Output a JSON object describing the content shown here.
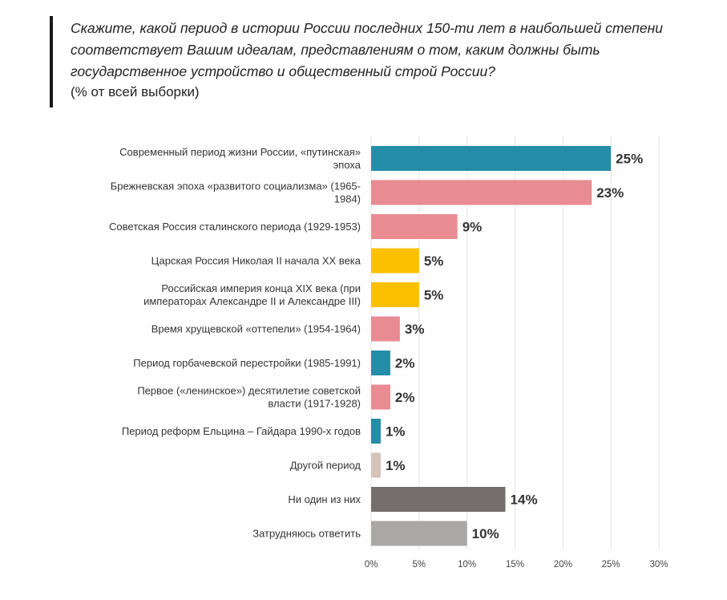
{
  "header": {
    "question": "Скажите, какой период в истории России последних 150-ти лет в наибольшей степени соответствует Вашим идеалам, представлениям о том, каким должны быть государственное устройство и общественный строй России?",
    "note": "(% от всей выборки)"
  },
  "chart_data": {
    "type": "bar",
    "orientation": "horizontal",
    "categories": [
      "Современный период жизни России, «путинская» эпоха",
      "Брежневская эпоха «развитого социализма» (1965-1984)",
      "Советская Россия сталинского периода (1929-1953)",
      "Царская Россия Николая II начала ХХ века",
      "Российская империя конца XIX века (при императорах Александре II и Александре III)",
      "Время хрущевской «оттепели» (1954-1964)",
      "Период горбачевской перестройки (1985-1991)",
      "Первое («ленинское») десятилетие советской власти (1917-1928)",
      "Период реформ Ельцина – Гайдара 1990-х годов",
      "Другой период",
      "Ни один из них",
      "Затрудняюсь ответить"
    ],
    "category_lines": [
      [
        "Современный период жизни России, «путинская»",
        "эпоха"
      ],
      [
        "Брежневская эпоха «развитого социализма» (1965-",
        "1984)"
      ],
      [
        "Советская Россия сталинского периода (1929-1953)"
      ],
      [
        "Царская Россия Николая II начала ХХ века"
      ],
      [
        "Российская империя конца XIX века (при",
        "императорах Александре II и Александре III)"
      ],
      [
        "Время хрущевской «оттепели» (1954-1964)"
      ],
      [
        "Период горбачевской перестройки (1985-1991)"
      ],
      [
        "Первое («ленинское») десятилетие советской",
        "власти (1917-1928)"
      ],
      [
        "Период реформ Ельцина – Гайдара 1990-х годов"
      ],
      [
        "Другой период"
      ],
      [
        "Ни один из них"
      ],
      [
        "Затрудняюсь ответить"
      ]
    ],
    "values": [
      25,
      23,
      9,
      5,
      5,
      3,
      2,
      2,
      1,
      1,
      14,
      10
    ],
    "value_labels": [
      "25%",
      "23%",
      "9%",
      "5%",
      "5%",
      "3%",
      "2%",
      "2%",
      "1%",
      "1%",
      "14%",
      "10%"
    ],
    "colors": [
      "#248da8",
      "#e98b93",
      "#e98b93",
      "#fcc000",
      "#fcc000",
      "#e98b93",
      "#248da8",
      "#e98b93",
      "#248da8",
      "#d5c3bb",
      "#756e6e",
      "#aaa7a7"
    ],
    "xlim": [
      0,
      30
    ],
    "xticks": [
      0,
      5,
      10,
      15,
      20,
      25,
      30
    ],
    "xtick_labels": [
      "0%",
      "5%",
      "10%",
      "15%",
      "20%",
      "25%",
      "30%"
    ],
    "grid": true,
    "gridline_color": "#e6e6e6"
  }
}
